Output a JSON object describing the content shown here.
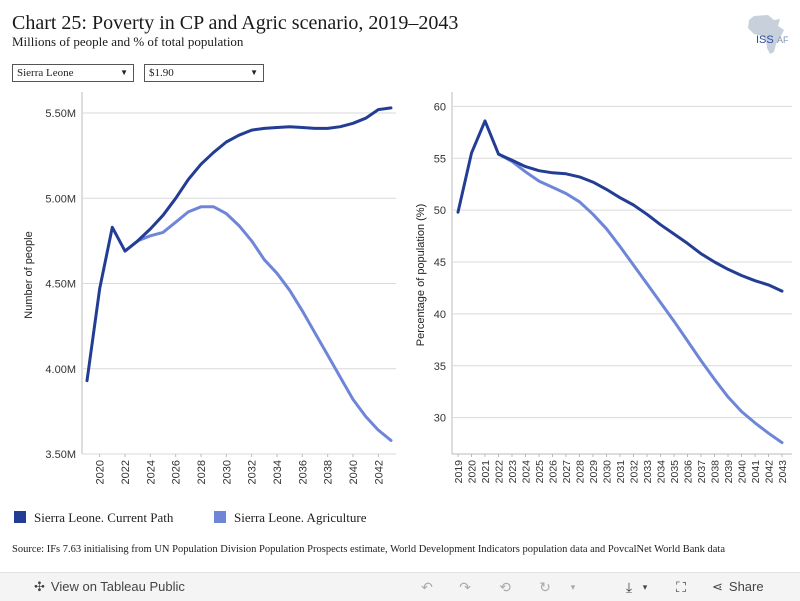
{
  "header": {
    "title": "Chart 25: Poverty in CP and Agric scenario, 2019–2043",
    "subtitle": "Millions of people and % of total population",
    "logo_text": "ISS",
    "logo_text2": "AF"
  },
  "filters": {
    "country": "Sierra Leone",
    "threshold": "$1.90"
  },
  "colors": {
    "current_path": "#233d95",
    "agriculture": "#6f86d8",
    "grid": "#d9d9d9"
  },
  "chart_data": [
    {
      "type": "line",
      "ylabel": "Number of people",
      "ylim": [
        3.5,
        5.6
      ],
      "yticks": [
        3.5,
        4.0,
        4.5,
        5.0,
        5.5
      ],
      "ytick_labels": [
        "3.50M",
        "4.00M",
        "4.50M",
        "5.00M",
        "5.50M"
      ],
      "xticks": [
        2020,
        2022,
        2024,
        2026,
        2028,
        2030,
        2032,
        2034,
        2036,
        2038,
        2040,
        2042
      ],
      "x": [
        2019,
        2020,
        2021,
        2022,
        2023,
        2024,
        2025,
        2026,
        2027,
        2028,
        2029,
        2030,
        2031,
        2032,
        2033,
        2034,
        2035,
        2036,
        2037,
        2038,
        2039,
        2040,
        2041,
        2042,
        2043
      ],
      "series": [
        {
          "name": "Sierra Leone. Current Path",
          "values": [
            3.93,
            4.47,
            4.83,
            4.69,
            4.75,
            4.82,
            4.9,
            5.0,
            5.11,
            5.2,
            5.27,
            5.33,
            5.37,
            5.4,
            5.41,
            5.415,
            5.42,
            5.415,
            5.41,
            5.41,
            5.42,
            5.44,
            5.47,
            5.52,
            5.53
          ]
        },
        {
          "name": "Sierra Leone. Agriculture",
          "values": [
            null,
            null,
            null,
            4.69,
            4.75,
            4.78,
            4.8,
            4.86,
            4.92,
            4.95,
            4.95,
            4.91,
            4.84,
            4.75,
            4.64,
            4.56,
            4.46,
            4.34,
            4.21,
            4.08,
            3.95,
            3.82,
            3.72,
            3.64,
            3.58
          ]
        }
      ]
    },
    {
      "type": "line",
      "ylabel": "Percentage of population (%)",
      "ylim": [
        26.5,
        61
      ],
      "yticks": [
        30,
        35,
        40,
        45,
        50,
        55,
        60
      ],
      "ytick_labels": [
        "30",
        "35",
        "40",
        "45",
        "50",
        "55",
        "60"
      ],
      "xticks": [
        2019,
        2020,
        2021,
        2022,
        2023,
        2024,
        2025,
        2026,
        2027,
        2028,
        2029,
        2030,
        2031,
        2032,
        2033,
        2034,
        2035,
        2036,
        2037,
        2038,
        2039,
        2040,
        2041,
        2042,
        2043
      ],
      "x": [
        2019,
        2020,
        2021,
        2022,
        2023,
        2024,
        2025,
        2026,
        2027,
        2028,
        2029,
        2030,
        2031,
        2032,
        2033,
        2034,
        2035,
        2036,
        2037,
        2038,
        2039,
        2040,
        2041,
        2042,
        2043
      ],
      "series": [
        {
          "name": "Sierra Leone. Current Path",
          "values": [
            49.8,
            55.5,
            58.6,
            55.4,
            54.8,
            54.2,
            53.8,
            53.6,
            53.5,
            53.2,
            52.7,
            52.0,
            51.2,
            50.5,
            49.6,
            48.6,
            47.7,
            46.8,
            45.8,
            45.0,
            44.3,
            43.7,
            43.2,
            42.8,
            42.2
          ]
        },
        {
          "name": "Sierra Leone. Agriculture",
          "values": [
            null,
            null,
            null,
            55.4,
            54.7,
            53.7,
            52.8,
            52.2,
            51.6,
            50.8,
            49.6,
            48.2,
            46.5,
            44.7,
            42.9,
            41.1,
            39.3,
            37.4,
            35.5,
            33.7,
            32.0,
            30.6,
            29.5,
            28.5,
            27.6
          ]
        }
      ]
    }
  ],
  "legend": {
    "current_path": "Sierra Leone. Current Path",
    "agriculture": "Sierra Leone. Agriculture"
  },
  "source": "Source: IFs 7.63 initialising from UN Population Division Population Prospects estimate, World Development Indicators population data and PovcalNet World Bank data",
  "footer": {
    "view_label": "View on Tableau Public",
    "share_label": "Share"
  }
}
